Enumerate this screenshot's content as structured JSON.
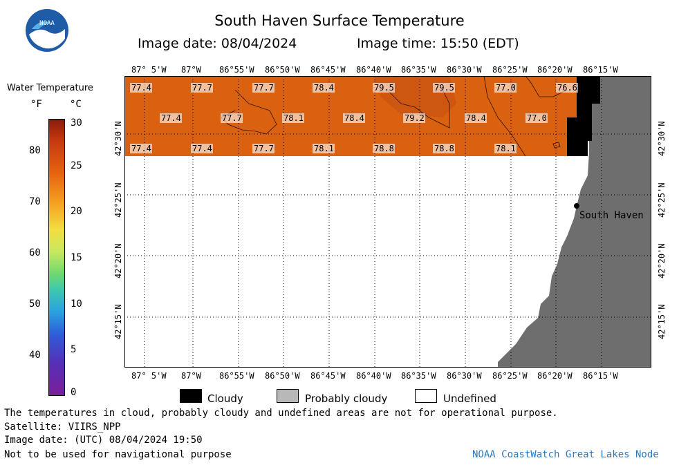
{
  "header": {
    "title": "South Haven Surface Temperature",
    "image_date": "Image date: 08/04/2024",
    "image_time": "Image time: 15:50 (EDT)",
    "logo_text": "NOAA"
  },
  "colorbar": {
    "title": "Water Temperature",
    "unit_f": "°F",
    "unit_c": "°C",
    "f_ticks": [
      "80",
      "70",
      "60",
      "50",
      "40"
    ],
    "c_ticks": [
      "30",
      "25",
      "20",
      "15",
      "10",
      "5",
      "0"
    ]
  },
  "map": {
    "lon_labels": [
      "87° 5'W",
      "87°W",
      "86°55'W",
      "86°50'W",
      "86°45'W",
      "86°40'W",
      "86°35'W",
      "86°30'W",
      "86°25'W",
      "86°20'W",
      "86°15'W"
    ],
    "lat_labels": [
      "42°30'N",
      "42°25'N",
      "42°20'N",
      "42°15'N"
    ],
    "place": "South Haven",
    "temps": [
      "77.4",
      "77.7",
      "77.7",
      "78.4",
      "79.5",
      "79.5",
      "77.0",
      "76.6",
      "77.4",
      "77.7",
      "78.1",
      "78.4",
      "79.2",
      "78.4",
      "77.0",
      "77.4",
      "77.4",
      "77.7",
      "78.1",
      "78.8",
      "78.8",
      "78.1"
    ],
    "colors": {
      "water": "#d9610f",
      "land": "#6e6e6e",
      "cloudy": "#000000",
      "undefined": "#ffffff"
    }
  },
  "legend": {
    "cloudy": "Cloudy",
    "probably_cloudy": "Probably cloudy",
    "undefined": "Undefined"
  },
  "footer": {
    "line1": "The temperatures in cloud, probably cloudy and undefined areas are not for operational purpose.",
    "line2": "Satellite: VIIRS_NPP",
    "line3": "Image date: (UTC) 08/04/2024  19:50",
    "line4": "Not to be used for navigational purpose",
    "credit": "NOAA CoastWatch Great Lakes Node"
  }
}
